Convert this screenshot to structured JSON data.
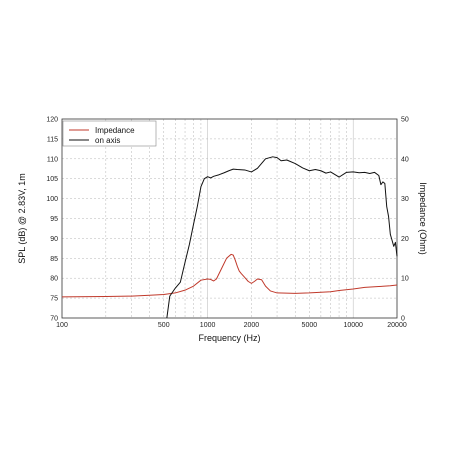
{
  "chart_data": {
    "type": "line",
    "xlabel": "Frequency (Hz)",
    "ylabel": "SPL (dB) @ 2.83V, 1m",
    "y2label": "Impedance (Ohm)",
    "xscale": "log",
    "xlim": [
      100,
      20000
    ],
    "ylim": [
      70,
      120
    ],
    "y2lim": [
      0,
      50
    ],
    "grid": true,
    "legend_position": "top-left",
    "xticks": [
      {
        "value": 100,
        "label": "100"
      },
      {
        "value": 500,
        "label": "500"
      },
      {
        "value": 1000,
        "label": "1000"
      },
      {
        "value": 2000,
        "label": "2000"
      },
      {
        "value": 5000,
        "label": "5000"
      },
      {
        "value": 10000,
        "label": "10000"
      },
      {
        "value": 20000,
        "label": "20000"
      }
    ],
    "yticks": [
      {
        "value": 70,
        "label": "70"
      },
      {
        "value": 75,
        "label": "75"
      },
      {
        "value": 80,
        "label": "80"
      },
      {
        "value": 85,
        "label": "85"
      },
      {
        "value": 90,
        "label": "90"
      },
      {
        "value": 95,
        "label": "95"
      },
      {
        "value": 100,
        "label": "100"
      },
      {
        "value": 105,
        "label": "105"
      },
      {
        "value": 110,
        "label": "110"
      },
      {
        "value": 115,
        "label": "115"
      },
      {
        "value": 120,
        "label": "120"
      }
    ],
    "y2ticks": [
      {
        "value": 0,
        "label": "0"
      },
      {
        "value": 10,
        "label": "10"
      },
      {
        "value": 20,
        "label": "20"
      },
      {
        "value": 30,
        "label": "30"
      },
      {
        "value": 40,
        "label": "40"
      },
      {
        "value": 50,
        "label": "50"
      }
    ],
    "series": [
      {
        "name": "Impedance",
        "color": "#c0392b",
        "axis": "right",
        "x": [
          100,
          200,
          300,
          400,
          500,
          600,
          700,
          800,
          900,
          1000,
          1050,
          1100,
          1150,
          1250,
          1350,
          1450,
          1500,
          1550,
          1600,
          1650,
          1700,
          1800,
          1900,
          2000,
          2100,
          2200,
          2350,
          2500,
          2700,
          3000,
          4000,
          5000,
          7000,
          8000,
          10000,
          12000,
          15000,
          18000,
          20000
        ],
        "y": [
          5.3,
          5.4,
          5.5,
          5.7,
          5.9,
          6.3,
          7.0,
          8.0,
          9.5,
          9.8,
          9.7,
          9.3,
          9.8,
          12.5,
          15.0,
          16.0,
          15.8,
          14.5,
          13.0,
          11.8,
          11.2,
          10.2,
          9.2,
          8.7,
          9.2,
          9.8,
          9.6,
          8.0,
          6.8,
          6.3,
          6.2,
          6.3,
          6.6,
          6.9,
          7.3,
          7.7,
          7.9,
          8.1,
          8.3
        ]
      },
      {
        "name": "on axis",
        "color": "#111111",
        "axis": "left",
        "x": [
          525,
          550,
          600,
          650,
          700,
          750,
          800,
          850,
          900,
          950,
          1000,
          1050,
          1100,
          1200,
          1300,
          1400,
          1500,
          1600,
          1800,
          2000,
          2200,
          2500,
          2800,
          3000,
          3200,
          3500,
          4000,
          4500,
          5000,
          5500,
          6000,
          6500,
          7000,
          8000,
          9000,
          10000,
          11000,
          12000,
          13000,
          14000,
          15000,
          15500,
          16000,
          16500,
          17000,
          17500,
          18000,
          18500,
          19000,
          19500,
          20000
        ],
        "y": [
          70.0,
          75.5,
          77.5,
          79.0,
          84.0,
          88.5,
          93.5,
          98.0,
          103.0,
          105.0,
          105.5,
          105.2,
          105.6,
          106.0,
          106.5,
          107.0,
          107.4,
          107.3,
          107.2,
          106.7,
          107.6,
          110.0,
          110.5,
          110.3,
          109.5,
          109.7,
          108.8,
          107.7,
          107.0,
          107.3,
          107.0,
          106.4,
          106.7,
          105.4,
          106.6,
          106.7,
          106.5,
          106.6,
          106.3,
          106.6,
          105.8,
          103.5,
          104.2,
          103.8,
          98.0,
          95.5,
          91.0,
          89.5,
          88.0,
          89.0,
          85.5
        ]
      }
    ]
  }
}
